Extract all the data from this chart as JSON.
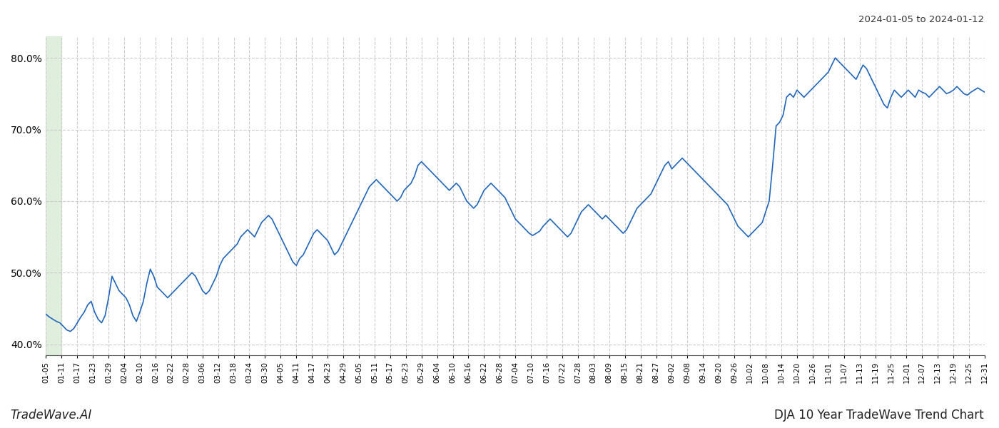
{
  "title_top_right": "2024-01-05 to 2024-01-12",
  "title_bottom_left": "TradeWave.AI",
  "title_bottom_right": "DJA 10 Year TradeWave Trend Chart",
  "line_color": "#2266bb",
  "line_width": 1.2,
  "highlight_color": "#d4e8d0",
  "highlight_alpha": 0.7,
  "background_color": "#ffffff",
  "grid_color": "#cccccc",
  "grid_style": "--",
  "ylim": [
    38.5,
    83.0
  ],
  "yticks": [
    40.0,
    50.0,
    60.0,
    70.0,
    80.0
  ],
  "x_labels": [
    "01-05",
    "01-11",
    "01-17",
    "01-23",
    "01-29",
    "02-04",
    "02-10",
    "02-16",
    "02-22",
    "02-28",
    "03-06",
    "03-12",
    "03-18",
    "03-24",
    "03-30",
    "04-05",
    "04-11",
    "04-17",
    "04-23",
    "04-29",
    "05-05",
    "05-11",
    "05-17",
    "05-23",
    "05-29",
    "06-04",
    "06-10",
    "06-16",
    "06-22",
    "06-28",
    "07-04",
    "07-10",
    "07-16",
    "07-22",
    "07-28",
    "08-03",
    "08-09",
    "08-15",
    "08-21",
    "08-27",
    "09-02",
    "09-08",
    "09-14",
    "09-20",
    "09-26",
    "10-02",
    "10-08",
    "10-14",
    "10-20",
    "10-26",
    "11-01",
    "11-07",
    "11-13",
    "11-19",
    "11-25",
    "12-01",
    "12-07",
    "12-13",
    "12-19",
    "12-25",
    "12-31"
  ],
  "y_values": [
    44.2,
    43.8,
    43.5,
    43.2,
    43.0,
    42.5,
    42.0,
    41.8,
    42.2,
    43.0,
    43.8,
    44.5,
    45.5,
    46.0,
    44.5,
    43.5,
    43.0,
    44.0,
    46.5,
    49.5,
    48.5,
    47.5,
    47.0,
    46.5,
    45.5,
    44.0,
    43.2,
    44.5,
    46.0,
    48.5,
    50.5,
    49.5,
    48.0,
    47.5,
    47.0,
    46.5,
    47.0,
    47.5,
    48.0,
    48.5,
    49.0,
    49.5,
    50.0,
    49.5,
    48.5,
    47.5,
    47.0,
    47.5,
    48.5,
    49.5,
    51.0,
    52.0,
    52.5,
    53.0,
    53.5,
    54.0,
    55.0,
    55.5,
    56.0,
    55.5,
    55.0,
    56.0,
    57.0,
    57.5,
    58.0,
    57.5,
    56.5,
    55.5,
    54.5,
    53.5,
    52.5,
    51.5,
    51.0,
    52.0,
    52.5,
    53.5,
    54.5,
    55.5,
    56.0,
    55.5,
    55.0,
    54.5,
    53.5,
    52.5,
    53.0,
    54.0,
    55.0,
    56.0,
    57.0,
    58.0,
    59.0,
    60.0,
    61.0,
    62.0,
    62.5,
    63.0,
    62.5,
    62.0,
    61.5,
    61.0,
    60.5,
    60.0,
    60.5,
    61.5,
    62.0,
    62.5,
    63.5,
    65.0,
    65.5,
    65.0,
    64.5,
    64.0,
    63.5,
    63.0,
    62.5,
    62.0,
    61.5,
    62.0,
    62.5,
    62.0,
    61.0,
    60.0,
    59.5,
    59.0,
    59.5,
    60.5,
    61.5,
    62.0,
    62.5,
    62.0,
    61.5,
    61.0,
    60.5,
    59.5,
    58.5,
    57.5,
    57.0,
    56.5,
    56.0,
    55.5,
    55.2,
    55.5,
    55.8,
    56.5,
    57.0,
    57.5,
    57.0,
    56.5,
    56.0,
    55.5,
    55.0,
    55.5,
    56.5,
    57.5,
    58.5,
    59.0,
    59.5,
    59.0,
    58.5,
    58.0,
    57.5,
    58.0,
    57.5,
    57.0,
    56.5,
    56.0,
    55.5,
    56.0,
    57.0,
    58.0,
    59.0,
    59.5,
    60.0,
    60.5,
    61.0,
    62.0,
    63.0,
    64.0,
    65.0,
    65.5,
    64.5,
    65.0,
    65.5,
    66.0,
    65.5,
    65.0,
    64.5,
    64.0,
    63.5,
    63.0,
    62.5,
    62.0,
    61.5,
    61.0,
    60.5,
    60.0,
    59.5,
    58.5,
    57.5,
    56.5,
    56.0,
    55.5,
    55.0,
    55.5,
    56.0,
    56.5,
    57.0,
    58.5,
    60.0,
    65.0,
    70.5,
    71.0,
    72.0,
    74.5,
    75.0,
    74.5,
    75.5,
    75.0,
    74.5,
    75.0,
    75.5,
    76.0,
    76.5,
    77.0,
    77.5,
    78.0,
    79.0,
    80.0,
    79.5,
    79.0,
    78.5,
    78.0,
    77.5,
    77.0,
    78.0,
    79.0,
    78.5,
    77.5,
    76.5,
    75.5,
    74.5,
    73.5,
    73.0,
    74.5,
    75.5,
    75.0,
    74.5,
    75.0,
    75.5,
    75.0,
    74.5,
    75.5,
    75.2,
    75.0,
    74.5,
    75.0,
    75.5,
    76.0,
    75.5,
    75.0,
    75.2,
    75.5,
    76.0,
    75.5,
    75.0,
    74.8,
    75.2,
    75.5,
    75.8,
    75.5,
    75.2
  ]
}
